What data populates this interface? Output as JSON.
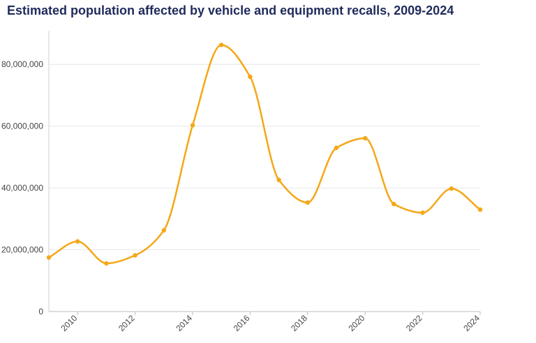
{
  "chart_data": {
    "type": "line",
    "title": "Estimated population affected by vehicle and equipment recalls, 2009-2024",
    "xlabel": "",
    "ylabel": "",
    "x": [
      2009,
      2010,
      2011,
      2012,
      2013,
      2014,
      2015,
      2016,
      2017,
      2018,
      2019,
      2020,
      2021,
      2022,
      2023,
      2024
    ],
    "series": [
      {
        "values": [
          17500000,
          22700000,
          15600000,
          18200000,
          26300000,
          60300000,
          86300000,
          76000000,
          42600000,
          35300000,
          53000000,
          56100000,
          34800000,
          32000000,
          39800000,
          33000000
        ]
      }
    ],
    "xlim": [
      2009,
      2024
    ],
    "ylim": [
      0,
      90000000
    ],
    "x_ticks": [
      "2010",
      "2012",
      "2014",
      "2016",
      "2018",
      "2020",
      "2022",
      "2024"
    ],
    "y_ticks": [
      "0",
      "20,000,000",
      "40,000,000",
      "60,000,000",
      "80,000,000"
    ],
    "y_tick_values": [
      0,
      20000000,
      40000000,
      60000000,
      80000000
    ],
    "grid": "horizontal",
    "line_color": "#f5a716",
    "title_color": "#1f2b5b"
  }
}
